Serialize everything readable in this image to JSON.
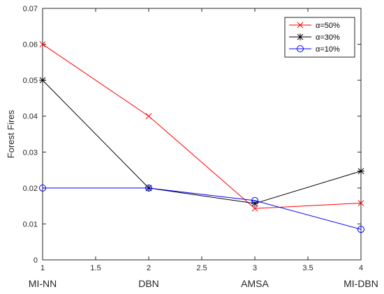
{
  "chart_data": {
    "type": "line",
    "x": [
      1,
      2,
      3,
      4
    ],
    "x_ticks": [
      1,
      1.5,
      2,
      2.5,
      3,
      3.5,
      4
    ],
    "x_tick_labels": [
      "1",
      "1.5",
      "2",
      "2.5",
      "3",
      "3.5",
      "4"
    ],
    "category_labels": [
      "MI-NN",
      "DBN",
      "AMSA",
      "MI-DBN"
    ],
    "xlim": [
      1,
      4
    ],
    "ylim": [
      0,
      0.07
    ],
    "y_ticks": [
      0,
      0.01,
      0.02,
      0.03,
      0.04,
      0.05,
      0.06,
      0.07
    ],
    "y_tick_labels": [
      "0",
      "0.01",
      "0.02",
      "0.03",
      "0.04",
      "0.05",
      "0.06",
      "0.07"
    ],
    "ylabel": "Forest Fires",
    "xlabel": "",
    "title": "",
    "grid": false,
    "legend_position": "top-right",
    "series": [
      {
        "name": "α=50%",
        "color": "#ff0000",
        "marker": "x",
        "values": [
          0.06,
          0.04,
          0.0143,
          0.0158
        ]
      },
      {
        "name": "α=30%",
        "color": "#000000",
        "marker": "asterisk",
        "values": [
          0.05,
          0.02,
          0.0157,
          0.0247
        ]
      },
      {
        "name": "α=10%",
        "color": "#0000ff",
        "marker": "circle",
        "values": [
          0.02,
          0.02,
          0.0165,
          0.0085
        ]
      }
    ]
  }
}
